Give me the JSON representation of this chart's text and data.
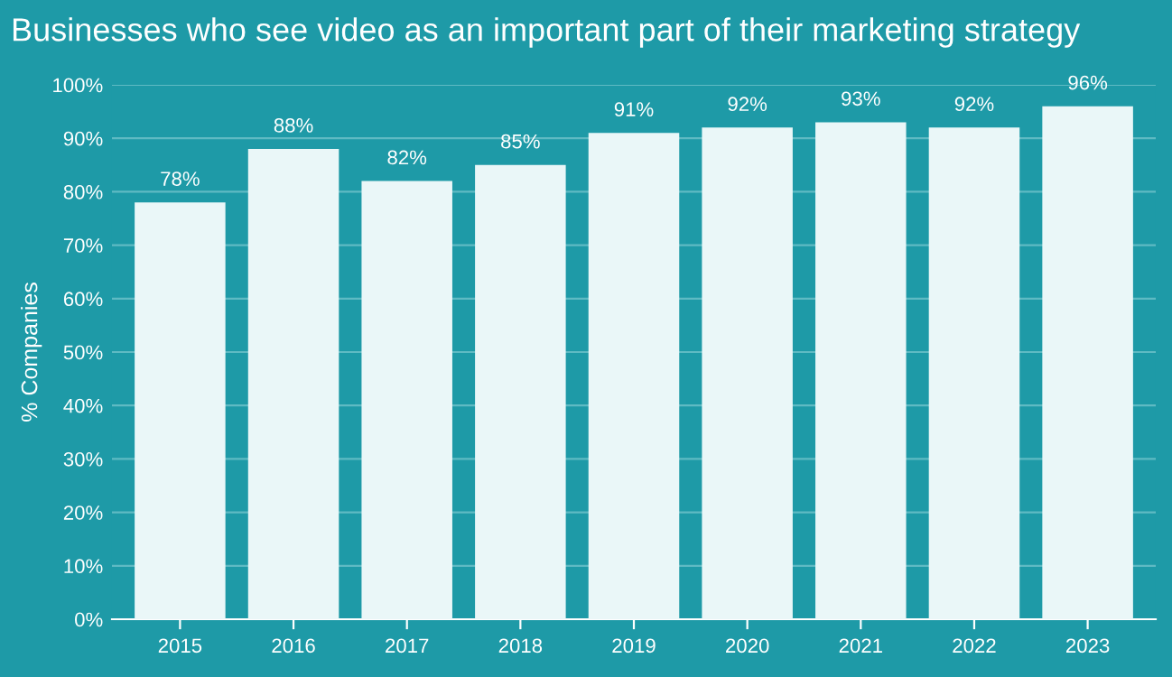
{
  "chart_data": {
    "type": "bar",
    "title": "Businesses who see video as an important part of their marketing strategy",
    "ylabel": "% Companies",
    "categories": [
      "2015",
      "2016",
      "2017",
      "2018",
      "2019",
      "2020",
      "2021",
      "2022",
      "2023"
    ],
    "values": [
      78,
      88,
      82,
      85,
      91,
      92,
      93,
      92,
      96
    ],
    "color": "#eaf7f8",
    "value_labels": [
      "78%",
      "88%",
      "82%",
      "85%",
      "91%",
      "92%",
      "93%",
      "92%",
      "96%"
    ],
    "ylim": [
      0,
      100
    ],
    "yticks": [
      {
        "value": 0,
        "label": "0%"
      },
      {
        "value": 10,
        "label": "10%"
      },
      {
        "value": 20,
        "label": "20%"
      },
      {
        "value": 30,
        "label": "30%"
      },
      {
        "value": 40,
        "label": "40%"
      },
      {
        "value": 50,
        "label": "50%"
      },
      {
        "value": 60,
        "label": "60%"
      },
      {
        "value": 70,
        "label": "70%"
      },
      {
        "value": 80,
        "label": "80%"
      },
      {
        "value": 90,
        "label": "90%"
      },
      {
        "value": 100,
        "label": "100%"
      }
    ],
    "grid": "y"
  }
}
